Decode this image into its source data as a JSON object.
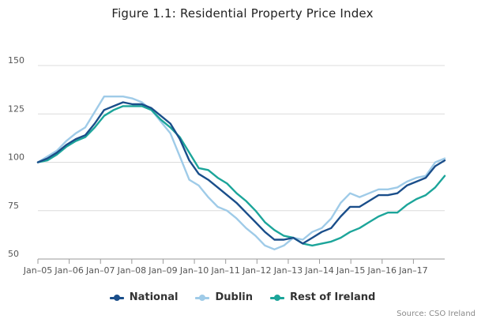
{
  "chart_data": {
    "type": "line",
    "title": "Figure 1.1: Residential Property Price Index",
    "source": "Source: CSO Ireland",
    "xlabel": "",
    "ylabel": "",
    "ylim": [
      50,
      150
    ],
    "yticks": [
      50,
      75,
      100,
      125,
      150
    ],
    "xtick_labels": [
      "Jan–05",
      "Jan–06",
      "Jan–07",
      "Jan–08",
      "Jan–09",
      "Jan–10",
      "Jan–11",
      "Jan–12",
      "Jan–13",
      "Jan–14",
      "Jan–15",
      "Jan–16",
      "Jan–17"
    ],
    "x_start": "Jan 2005",
    "x_end": "Dec 2017",
    "x_interval": "quarterly",
    "grid": true,
    "legend_position": "bottom",
    "series": [
      {
        "name": "National",
        "color": "#1a4e8a",
        "values": [
          100,
          102,
          105,
          109,
          112,
          114,
          120,
          127,
          129,
          131,
          130,
          130,
          128,
          124,
          120,
          112,
          101,
          94,
          91,
          87,
          83,
          79,
          74,
          69,
          64,
          60,
          60,
          61,
          58,
          61,
          64,
          66,
          72,
          77,
          77,
          80,
          83,
          83,
          84,
          88,
          90,
          92,
          98,
          101
        ]
      },
      {
        "name": "Dublin",
        "color": "#9fcbe8",
        "values": [
          100,
          103,
          106,
          111,
          115,
          118,
          126,
          134,
          134,
          134,
          133,
          131,
          127,
          121,
          115,
          103,
          91,
          88,
          82,
          77,
          75,
          71,
          66,
          62,
          57,
          55,
          57,
          61,
          60,
          64,
          66,
          71,
          79,
          84,
          82,
          84,
          86,
          86,
          87,
          90,
          92,
          93,
          100,
          102
        ]
      },
      {
        "name": "Rest of Ireland",
        "color": "#1ca59a",
        "values": [
          100,
          101,
          104,
          108,
          111,
          113,
          118,
          124,
          127,
          129,
          129,
          129,
          127,
          122,
          118,
          113,
          105,
          97,
          96,
          92,
          89,
          84,
          80,
          75,
          69,
          65,
          62,
          61,
          58,
          57,
          58,
          59,
          61,
          64,
          66,
          69,
          72,
          74,
          74,
          78,
          81,
          83,
          87,
          93
        ]
      }
    ]
  }
}
